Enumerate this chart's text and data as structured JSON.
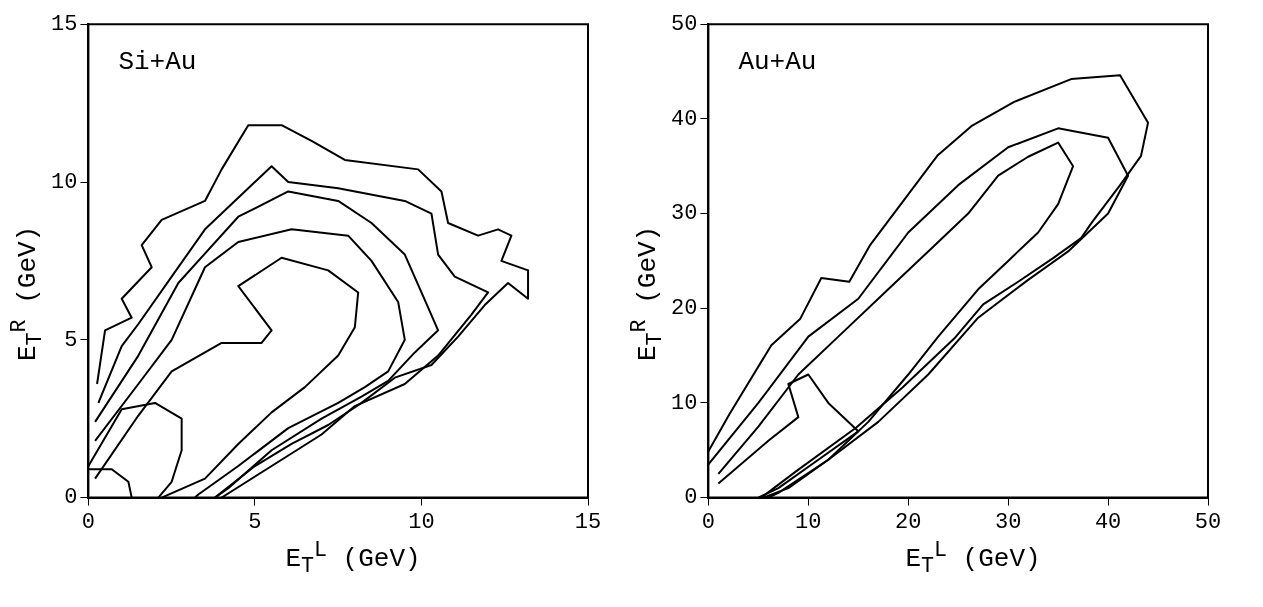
{
  "chart_data": [
    {
      "type": "line",
      "xlabel": "E$_{T}$$^{L}$ (GeV)",
      "ylabel": "E$_{T}$$^{R}$ (GeV)",
      "annotations": [
        "Si+Au"
      ],
      "xlim": [
        0,
        15
      ],
      "ylim": [
        0,
        15
      ],
      "xticks": [
        0,
        5,
        10,
        15
      ],
      "yticks": [
        0,
        5,
        10,
        15
      ],
      "grid": false,
      "series": [
        {
          "color": "#000000",
          "x": [
            0.26,
            0.5,
            1.3,
            1.0,
            1.9,
            1.6,
            2.2,
            3.5,
            4.0,
            4.8,
            5.8,
            6.7,
            7.7,
            9.9,
            10.6,
            10.8,
            11.7,
            12.3,
            12.7,
            12.4,
            13.2,
            13.2,
            12.6,
            11.9,
            11.1,
            10.3,
            9.2,
            8.2,
            7.2,
            6.1,
            5.0,
            3.8
          ],
          "values": [
            3.6,
            5.3,
            5.7,
            6.3,
            7.3,
            8.0,
            8.8,
            9.4,
            10.4,
            11.8,
            11.8,
            11.3,
            10.7,
            10.4,
            9.7,
            8.7,
            8.3,
            8.5,
            8.3,
            7.5,
            7.2,
            6.3,
            6.8,
            6.1,
            5.1,
            4.2,
            3.8,
            3.0,
            2.3,
            1.7,
            1.0,
            0
          ]
        },
        {
          "color": "#000000",
          "x": [
            0.3,
            1.0,
            1.5,
            2.5,
            3.5,
            4.8,
            5.5,
            6.0,
            7.5,
            9.5,
            10.3,
            10.5,
            11.0,
            12.0,
            11.5,
            10.5,
            9.5,
            8.0,
            7.0,
            5.8,
            4.6,
            4.0
          ],
          "values": [
            3.0,
            4.8,
            5.5,
            7.0,
            8.5,
            9.8,
            10.5,
            10.0,
            9.8,
            9.4,
            9.0,
            7.7,
            7.0,
            6.5,
            5.8,
            4.5,
            3.6,
            2.9,
            2.0,
            1.2,
            0.4,
            0
          ]
        },
        {
          "color": "#000000",
          "x": [
            0.2,
            1.5,
            2.7,
            4.5,
            6.0,
            7.5,
            8.5,
            9.5,
            10.0,
            10.5,
            9.8,
            9.0,
            8.2,
            7.0,
            5.5,
            4.2,
            3.8
          ],
          "values": [
            2.4,
            4.5,
            6.8,
            8.9,
            9.7,
            9.4,
            8.7,
            7.7,
            6.5,
            5.3,
            4.6,
            3.7,
            3.2,
            2.5,
            1.5,
            0.3,
            0
          ]
        },
        {
          "color": "#000000",
          "x": [
            0.2,
            1.5,
            2.5,
            3.5,
            4.5,
            6.1,
            7.8,
            8.5,
            9.3,
            9.5,
            9.0,
            8.3,
            7.5,
            6.0,
            4.5,
            3.3,
            3.2
          ],
          "values": [
            1.8,
            3.6,
            5.0,
            7.3,
            8.1,
            8.5,
            8.3,
            7.5,
            6.2,
            5.0,
            4.0,
            3.5,
            3.0,
            2.2,
            1.0,
            0.1,
            0
          ]
        },
        {
          "color": "#000000",
          "x": [
            0.2,
            1.5,
            2.5,
            4.0,
            5.2,
            5.5,
            4.5,
            5.8,
            7.2,
            8.1,
            8.0,
            7.5,
            6.5,
            5.5,
            4.5,
            3.5,
            2.2
          ],
          "values": [
            0.6,
            2.6,
            4.0,
            4.9,
            4.9,
            5.3,
            6.7,
            7.6,
            7.2,
            6.5,
            5.4,
            4.5,
            3.5,
            2.7,
            1.7,
            0.6,
            0
          ]
        },
        {
          "color": "#000000",
          "x": [
            0,
            1.0,
            2.0,
            2.8,
            2.8,
            2.5,
            2.1
          ],
          "values": [
            1.0,
            2.8,
            3.0,
            2.5,
            1.5,
            0.5,
            0
          ]
        },
        {
          "color": "#000000",
          "x": [
            0,
            0.7,
            1.2,
            1.3
          ],
          "values": [
            0.9,
            0.9,
            0.5,
            0
          ]
        }
      ]
    },
    {
      "type": "line",
      "xlabel": "E$_{T}$$^{L}$ (GeV)",
      "ylabel": "E$_{T}$$^{R}$ (GeV)",
      "annotations": [
        "Au+Au"
      ],
      "xlim": [
        0,
        50
      ],
      "ylim": [
        0,
        50
      ],
      "xticks": [
        0,
        10,
        20,
        30,
        40,
        50
      ],
      "yticks": [
        0,
        10,
        20,
        30,
        40,
        50
      ],
      "grid": false,
      "series": [
        {
          "color": "#000000",
          "x": [
            0,
            2.1,
            6.3,
            9.2,
            11.3,
            14.1,
            16.2,
            19.7,
            22.9,
            26.4,
            30.6,
            36.3,
            41.2,
            44.0,
            43.3,
            41.2,
            38.4,
            37.3,
            34.5,
            31.0,
            27.5,
            24.6,
            19.4,
            14.8,
            8.8,
            5.3
          ],
          "values": [
            4.9,
            8.8,
            16.1,
            18.9,
            23.2,
            22.8,
            26.7,
            31.6,
            36.1,
            39.3,
            41.8,
            44.2,
            44.6,
            39.6,
            36.1,
            33.0,
            29.1,
            27.4,
            25.3,
            22.8,
            20.4,
            16.8,
            11.6,
            7.4,
            2.8,
            0
          ]
        },
        {
          "color": "#000000",
          "x": [
            0,
            5,
            10,
            15,
            20,
            25,
            30,
            35,
            40,
            42,
            40,
            36,
            32,
            27,
            22,
            17,
            12,
            7,
            6
          ],
          "values": [
            3.5,
            10,
            17,
            21,
            28,
            33,
            37,
            39,
            38,
            34,
            30,
            26,
            23,
            19,
            13,
            8,
            4,
            0.5,
            0
          ]
        },
        {
          "color": "#000000",
          "x": [
            1,
            5,
            9,
            13,
            18,
            22,
            26,
            29,
            32,
            35,
            36.5,
            35,
            33,
            30,
            27,
            23,
            20,
            16,
            12,
            8,
            5.5
          ],
          "values": [
            2.5,
            7.5,
            13,
            17,
            22,
            26,
            30,
            34,
            36,
            37.5,
            35,
            31,
            28,
            25,
            22,
            17,
            13,
            8,
            4,
            1,
            0
          ]
        },
        {
          "color": "#000000",
          "x": [
            1,
            6,
            9,
            8,
            10,
            12,
            15,
            11,
            7,
            5
          ],
          "values": [
            1.5,
            6,
            8.5,
            12,
            13,
            10,
            7,
            4,
            1,
            0
          ]
        }
      ]
    }
  ]
}
